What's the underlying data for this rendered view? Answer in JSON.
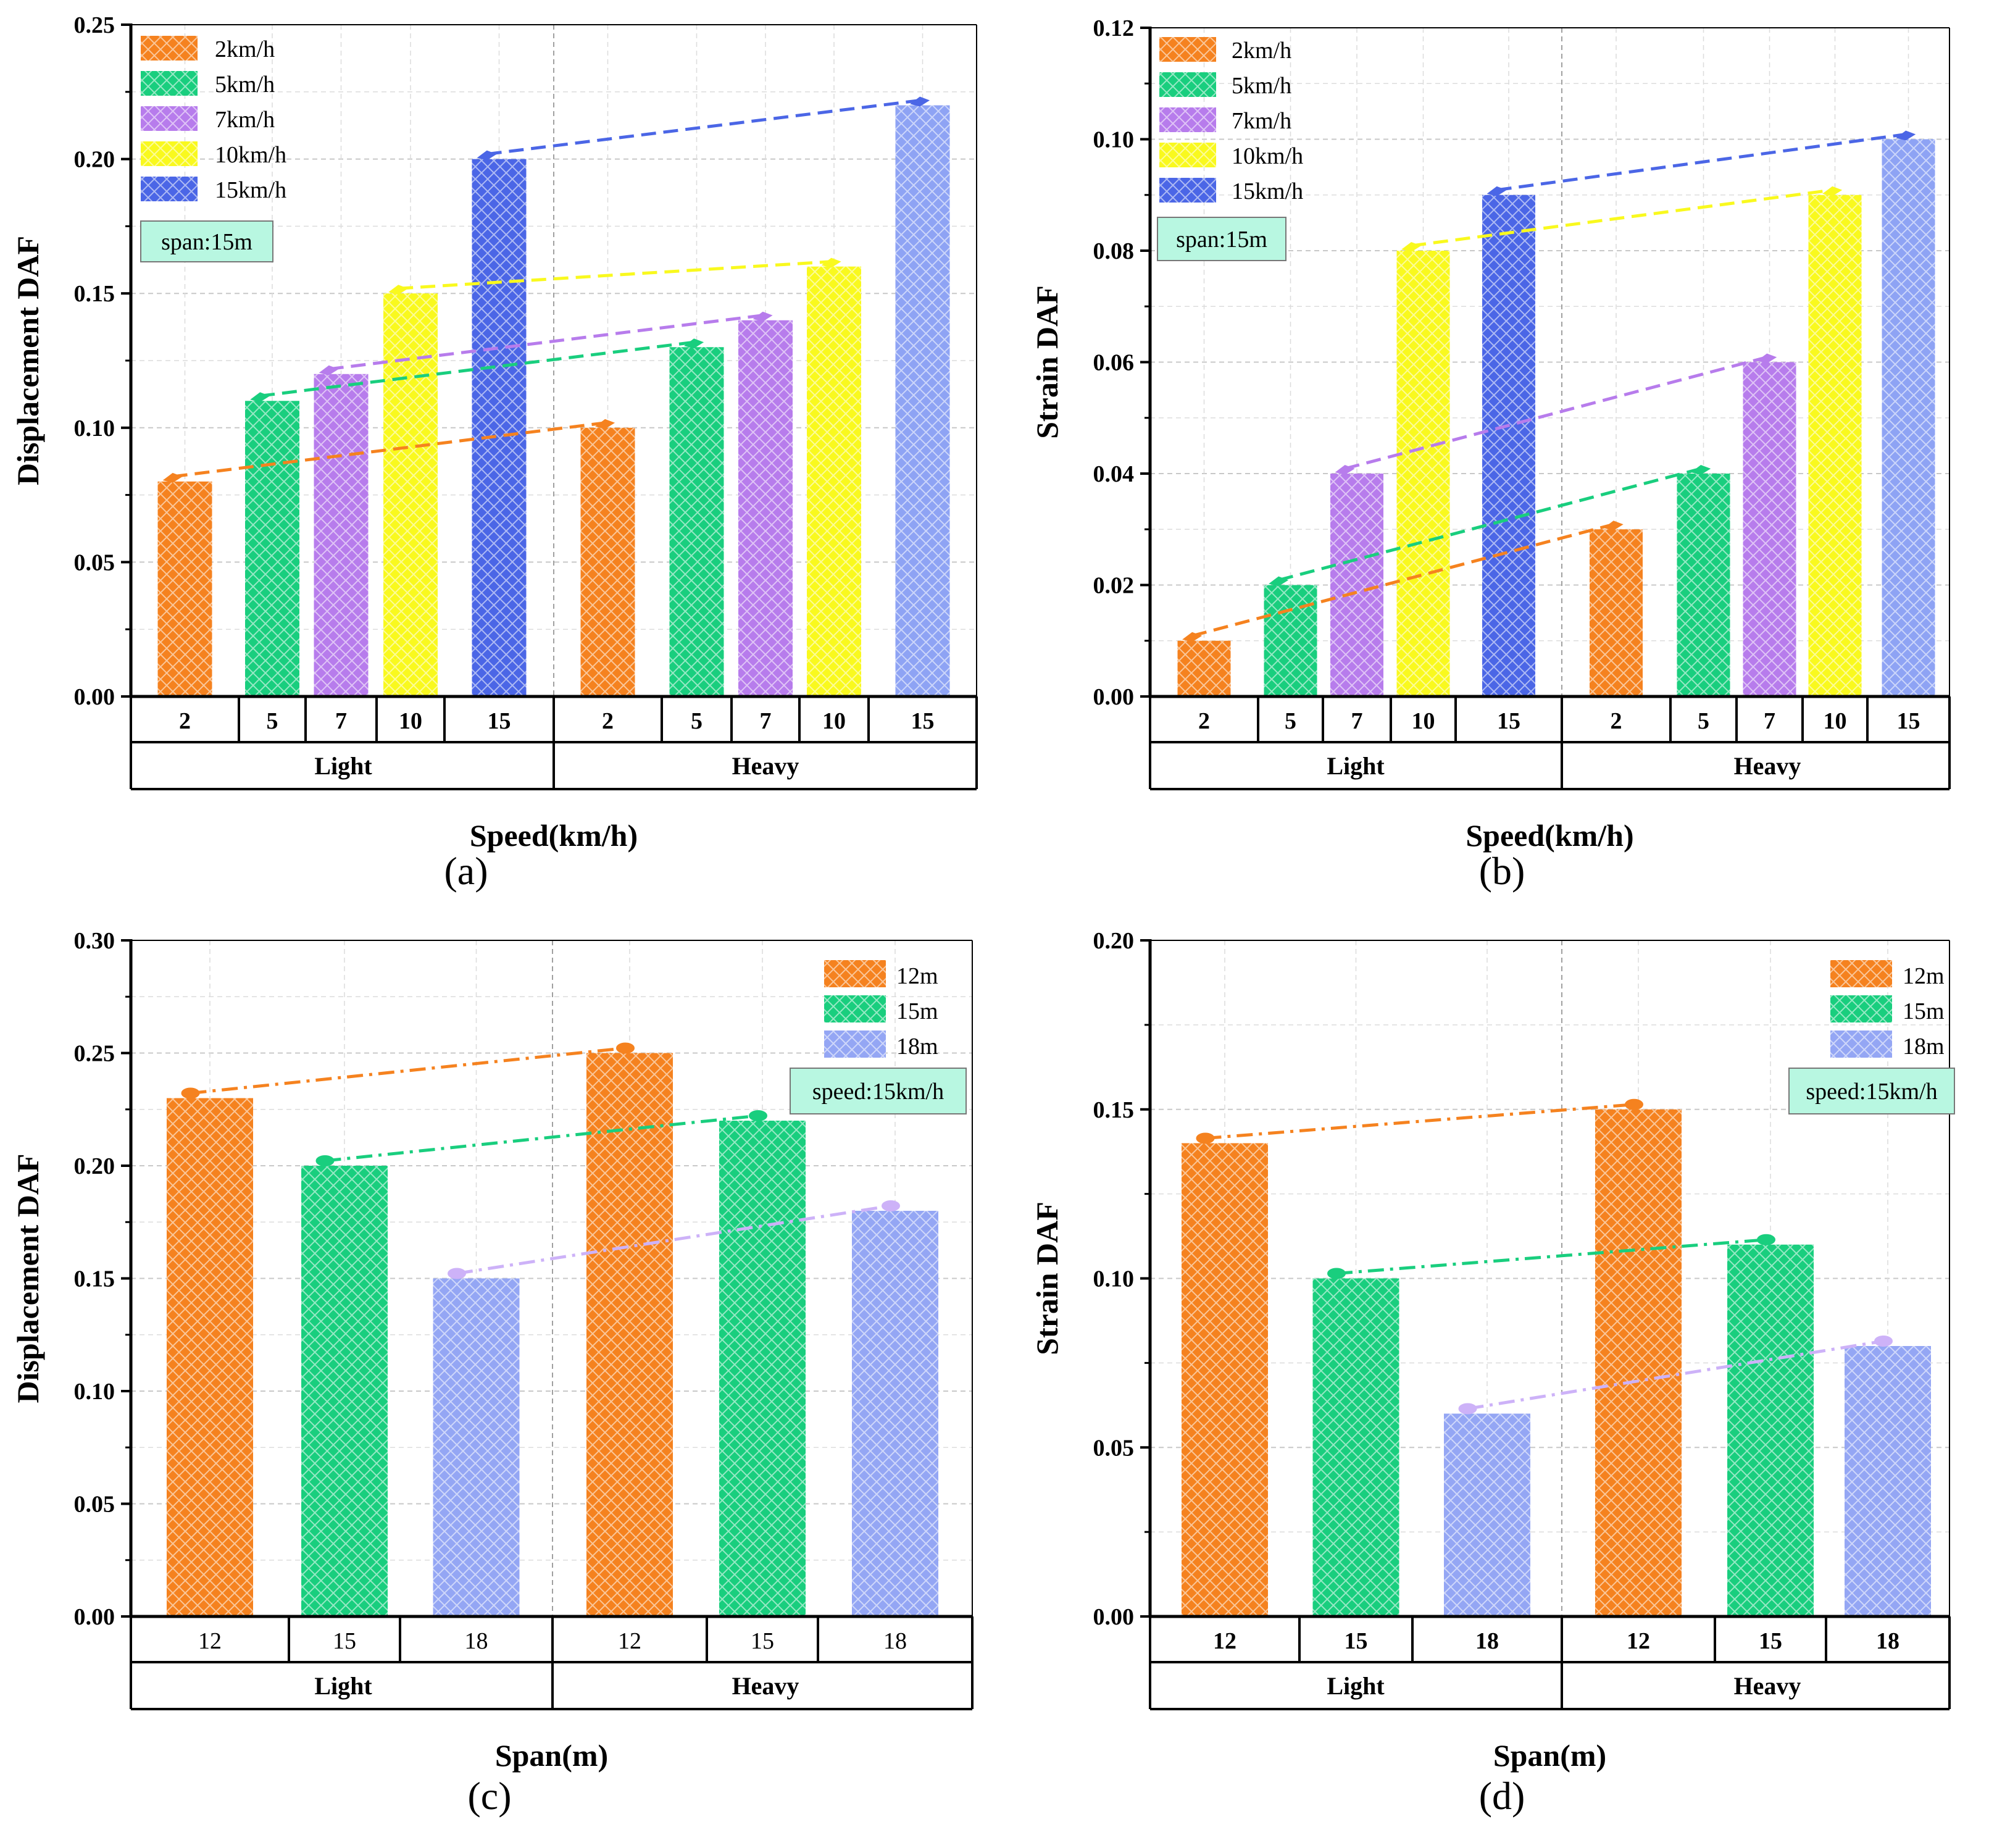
{
  "chart_data": [
    {
      "panel_label": "(a)",
      "type": "bar",
      "title": "",
      "xlabel": "Speed(km/h)",
      "ylabel": "Displacement DAF",
      "ylim": [
        0,
        0.25
      ],
      "yticks": [
        "0.00",
        "0.05",
        "0.10",
        "0.15",
        "0.20",
        "0.25"
      ],
      "minor_yticks": true,
      "groups": [
        "Light",
        "Heavy"
      ],
      "tick_labels": [
        [
          "2",
          "5",
          "7",
          "10",
          "15"
        ],
        [
          "2",
          "5",
          "7",
          "10",
          "15"
        ]
      ],
      "tick_bold": true,
      "series": [
        {
          "name": "2km/h",
          "values": [
            0.08,
            0.1
          ]
        },
        {
          "name": "5km/h",
          "values": [
            0.11,
            0.13
          ]
        },
        {
          "name": "7km/h",
          "values": [
            0.12,
            0.14
          ]
        },
        {
          "name": "10km/h",
          "values": [
            0.15,
            0.16
          ]
        },
        {
          "name": "15km/h",
          "values": [
            0.2,
            0.22
          ]
        }
      ],
      "annotation": "span:15m",
      "legend_position": "top-left",
      "grid": true,
      "trend_lines": "dashed"
    },
    {
      "panel_label": "(b)",
      "type": "bar",
      "title": "",
      "xlabel": "Speed(km/h)",
      "ylabel": "Strain DAF",
      "ylim": [
        0,
        0.12
      ],
      "yticks": [
        "0.00",
        "0.02",
        "0.04",
        "0.06",
        "0.08",
        "0.10",
        "0.12"
      ],
      "minor_yticks": true,
      "groups": [
        "Light",
        "Heavy"
      ],
      "tick_labels": [
        [
          "2",
          "5",
          "7",
          "10",
          "15"
        ],
        [
          "2",
          "5",
          "7",
          "10",
          "15"
        ]
      ],
      "tick_bold": true,
      "series": [
        {
          "name": "2km/h",
          "values": [
            0.01,
            0.03
          ]
        },
        {
          "name": "5km/h",
          "values": [
            0.02,
            0.04
          ]
        },
        {
          "name": "7km/h",
          "values": [
            0.04,
            0.06
          ]
        },
        {
          "name": "10km/h",
          "values": [
            0.08,
            0.09
          ]
        },
        {
          "name": "15km/h",
          "values": [
            0.09,
            0.1
          ]
        }
      ],
      "annotation": "span:15m",
      "legend_position": "top-left",
      "grid": true,
      "trend_lines": "dashed"
    },
    {
      "panel_label": "(c)",
      "type": "bar",
      "title": "",
      "xlabel": "Span(m)",
      "ylabel": "Displacement DAF",
      "ylim": [
        0,
        0.3
      ],
      "yticks": [
        "0.00",
        "0.05",
        "0.10",
        "0.15",
        "0.20",
        "0.25",
        "0.30"
      ],
      "minor_yticks": true,
      "groups": [
        "Light",
        "Heavy"
      ],
      "tick_labels": [
        [
          "12",
          "15",
          "18"
        ],
        [
          "12",
          "15",
          "18"
        ]
      ],
      "tick_bold": false,
      "series": [
        {
          "name": "12m",
          "values": [
            0.23,
            0.25
          ]
        },
        {
          "name": "15m",
          "values": [
            0.2,
            0.22
          ]
        },
        {
          "name": "18m",
          "values": [
            0.15,
            0.18
          ]
        }
      ],
      "annotation": "speed:15km/h",
      "legend_position": "top-right",
      "grid": true,
      "trend_lines": "dash-dot"
    },
    {
      "panel_label": "(d)",
      "type": "bar",
      "title": "",
      "xlabel": "Span(m)",
      "ylabel": "Strain DAF",
      "ylim": [
        0,
        0.2
      ],
      "yticks": [
        "0.00",
        "0.05",
        "0.10",
        "0.15",
        "0.20"
      ],
      "minor_yticks": true,
      "groups": [
        "Light",
        "Heavy"
      ],
      "tick_labels": [
        [
          "12",
          "15",
          "18"
        ],
        [
          "12",
          "15",
          "18"
        ]
      ],
      "tick_bold": true,
      "series": [
        {
          "name": "12m",
          "values": [
            0.14,
            0.15
          ]
        },
        {
          "name": "15m",
          "values": [
            0.1,
            0.11
          ]
        },
        {
          "name": "18m",
          "values": [
            0.06,
            0.08
          ]
        }
      ],
      "annotation": "speed:15km/h",
      "legend_position": "top-right",
      "grid": true,
      "trend_lines": "dash-dot"
    }
  ],
  "colors": {
    "speed_series": [
      "#F5821F",
      "#19CE7E",
      "#B77CEC",
      "#F9F91E",
      "#4B66E6"
    ],
    "speed_heavy_15": "#8EA3F4",
    "speed_lines": [
      "#F5821F",
      "#19CE7E",
      "#B77CEC",
      "#F9F91E",
      "#4B66E6"
    ],
    "span_series": [
      "#F5821F",
      "#19CE7E",
      "#94A6F4"
    ],
    "span_lines": [
      "#F5821F",
      "#19CE7E",
      "#CDB2F8"
    ],
    "annotation_fill": "#B8F7E1"
  }
}
